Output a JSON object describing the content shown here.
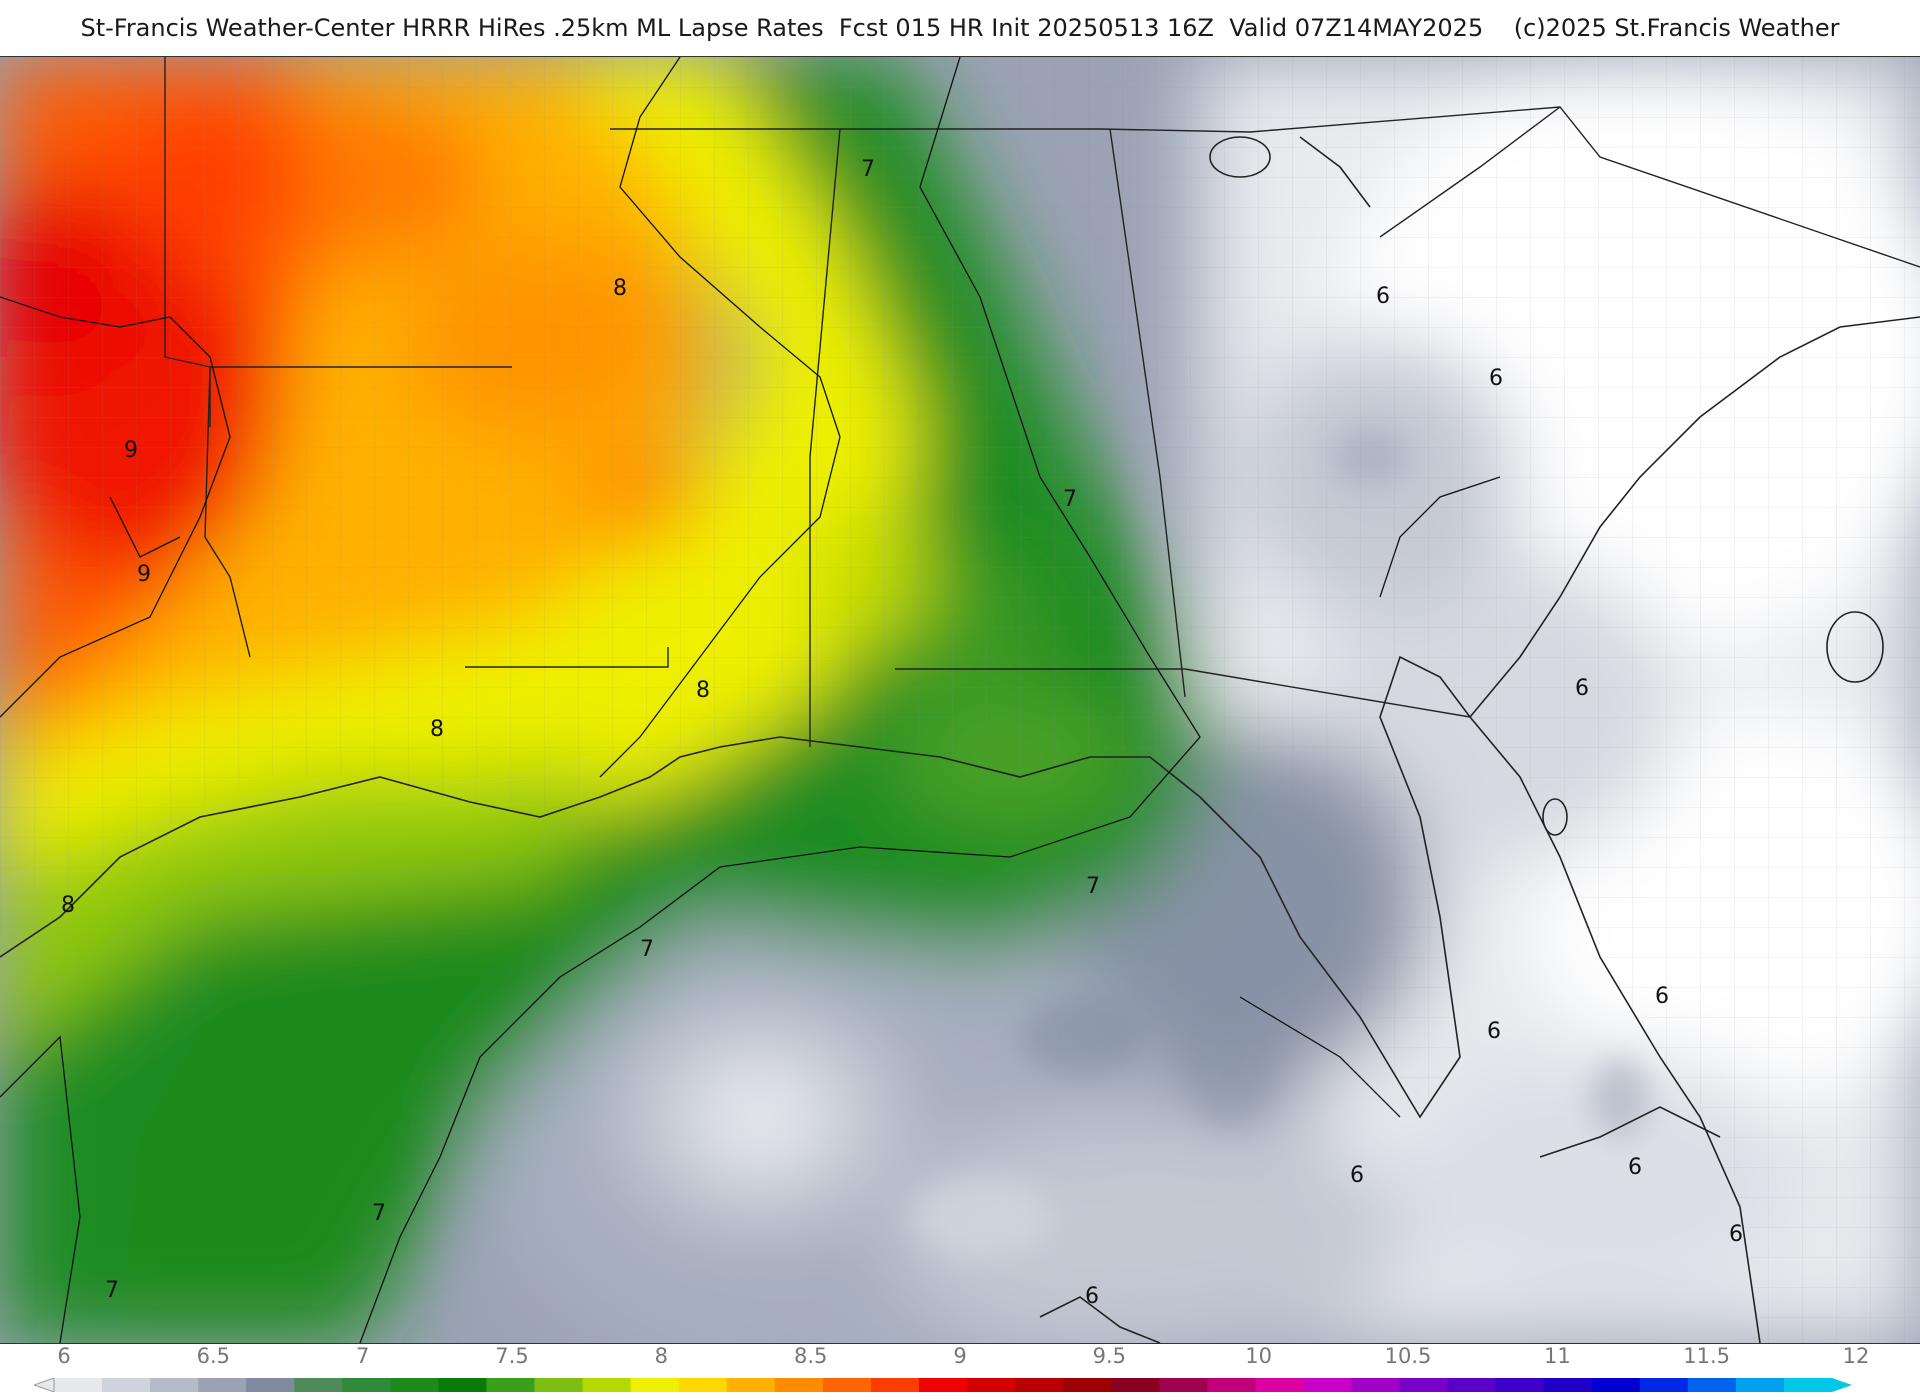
{
  "header": {
    "title": "St-Francis Weather-Center HRRR HiRes .25km ML Lapse Rates  Fcst 015 HR Init 20250513 16Z  Valid 07Z14MAY2025    (c)2025 St.Francis Weather"
  },
  "map": {
    "contour_labels": [
      {
        "text": "8"
      },
      {
        "text": "9"
      },
      {
        "text": "9"
      },
      {
        "text": "8"
      },
      {
        "text": "8"
      },
      {
        "text": "8"
      },
      {
        "text": "7"
      },
      {
        "text": "7"
      },
      {
        "text": "7"
      },
      {
        "text": "7"
      },
      {
        "text": "7"
      },
      {
        "text": "7"
      },
      {
        "text": "6"
      },
      {
        "text": "6"
      },
      {
        "text": "6"
      },
      {
        "text": "6"
      },
      {
        "text": "6"
      },
      {
        "text": "6"
      },
      {
        "text": "6"
      },
      {
        "text": "6"
      },
      {
        "text": "6"
      }
    ]
  },
  "colorbar": {
    "ticks": [
      "6",
      "6.5",
      "7",
      "7.5",
      "8",
      "8.5",
      "9",
      "9.5",
      "10",
      "10.5",
      "11",
      "11.5",
      "12"
    ],
    "colors": [
      "#e6e8ee",
      "#cfd3dc",
      "#b4bac8",
      "#9aa2b4",
      "#7f8a9e",
      "#4f8a5a",
      "#2f8a3a",
      "#1e8a1e",
      "#0a7a0a",
      "#3aa01a",
      "#7dbf10",
      "#b5d800",
      "#eef000",
      "#ffd800",
      "#ffb000",
      "#ff8c00",
      "#ff6400",
      "#ff3c00",
      "#f00000",
      "#d40000",
      "#b80000",
      "#9c0000",
      "#8a0020",
      "#a00050",
      "#c0007a",
      "#dc00a0",
      "#c800c8",
      "#a000c8",
      "#7800c8",
      "#5a00c8",
      "#3c00c8",
      "#1e00c8",
      "#0000d2",
      "#0028e6",
      "#0064f0",
      "#00a0f0",
      "#00c8e6"
    ]
  }
}
